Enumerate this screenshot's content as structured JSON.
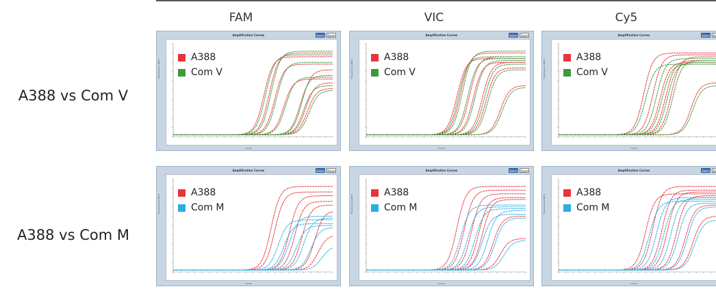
{
  "columns": [
    "FAM",
    "VIC",
    "Cy5"
  ],
  "rows": [
    "A388 vs Com V",
    "A388 vs Com M"
  ],
  "panel_title": "Amplification Curves",
  "buttons": {
    "select": "Select",
    "zoom": "Zoom"
  },
  "axis_xlabel": "Cycles",
  "axis_ylabel": "Fluorescence (RFU)",
  "colors": {
    "A388": "#e8343c",
    "Com V": "#3c9a3c",
    "Com M": "#2aaee0"
  },
  "chart_data": [
    {
      "type": "line",
      "title": "FAM",
      "row": "A388 vs Com V",
      "xlim": [
        1,
        45
      ],
      "ylim": [
        0,
        1
      ],
      "series": [
        {
          "name": "A388",
          "midpoints": [
            26,
            27.5,
            29,
            31.5,
            36.5,
            37.5,
            38
          ],
          "plateaus": [
            0.86,
            0.9,
            0.78,
            0.62,
            0.72,
            0.58,
            0.52
          ]
        },
        {
          "name": "Com V",
          "midpoints": [
            26.5,
            28,
            29.5,
            32,
            36,
            37,
            38.5
          ],
          "plateaus": [
            0.88,
            0.92,
            0.8,
            0.64,
            0.66,
            0.55,
            0.5
          ]
        }
      ]
    },
    {
      "type": "line",
      "title": "VIC",
      "row": "A388 vs Com V",
      "xlim": [
        1,
        45
      ],
      "ylim": [
        0,
        1
      ],
      "series": [
        {
          "name": "A388",
          "midpoints": [
            26,
            27,
            29.5,
            30.5,
            33,
            34,
            38
          ],
          "plateaus": [
            0.84,
            0.9,
            0.86,
            0.8,
            0.8,
            0.74,
            0.55
          ]
        },
        {
          "name": "Com V",
          "midpoints": [
            26.5,
            27.5,
            29,
            31,
            33.5,
            34.5,
            38.5
          ],
          "plateaus": [
            0.86,
            0.92,
            0.84,
            0.82,
            0.78,
            0.72,
            0.53
          ]
        }
      ]
    },
    {
      "type": "line",
      "title": "Cy5",
      "row": "A388 vs Com V",
      "xlim": [
        1,
        45
      ],
      "ylim": [
        0,
        1
      ],
      "series": [
        {
          "name": "A388",
          "midpoints": [
            24.5,
            27,
            29,
            30.5,
            32,
            37.5
          ],
          "plateaus": [
            0.9,
            0.88,
            0.8,
            0.82,
            0.86,
            0.58
          ]
        },
        {
          "name": "Com V",
          "midpoints": [
            25,
            28,
            29.5,
            31,
            32.5,
            38
          ],
          "plateaus": [
            0.78,
            0.84,
            0.78,
            0.8,
            0.82,
            0.55
          ]
        }
      ]
    },
    {
      "type": "line",
      "title": "FAM",
      "row": "A388 vs Com M",
      "xlim": [
        1,
        45
      ],
      "ylim": [
        0,
        1
      ],
      "series": [
        {
          "name": "A388",
          "midpoints": [
            28,
            29,
            33,
            34.5,
            36.5,
            40,
            41
          ],
          "plateaus": [
            0.92,
            0.86,
            0.82,
            0.76,
            0.72,
            0.66,
            0.4
          ]
        },
        {
          "name": "Com M",
          "midpoints": [
            30,
            31.5,
            33,
            35,
            37,
            39,
            42
          ],
          "plateaus": [
            0.56,
            0.52,
            0.6,
            0.5,
            0.58,
            0.48,
            0.28
          ]
        }
      ]
    },
    {
      "type": "line",
      "title": "VIC",
      "row": "A388 vs Com M",
      "xlim": [
        1,
        45
      ],
      "ylim": [
        0,
        1
      ],
      "series": [
        {
          "name": "A388",
          "midpoints": [
            26,
            28,
            30,
            32,
            33,
            36,
            38
          ],
          "plateaus": [
            0.92,
            0.88,
            0.84,
            0.8,
            0.78,
            0.6,
            0.36
          ]
        },
        {
          "name": "Com M",
          "midpoints": [
            27,
            29,
            31,
            33,
            34.5,
            36.5,
            39
          ],
          "plateaus": [
            0.72,
            0.7,
            0.68,
            0.62,
            0.66,
            0.58,
            0.34
          ]
        }
      ]
    },
    {
      "type": "line",
      "title": "Cy5",
      "row": "A388 vs Com M",
      "xlim": [
        1,
        45
      ],
      "ylim": [
        0,
        1
      ],
      "series": [
        {
          "name": "A388",
          "midpoints": [
            25,
            27,
            29.5,
            31,
            33.5,
            36,
            38
          ],
          "plateaus": [
            0.84,
            0.92,
            0.88,
            0.86,
            0.82,
            0.72,
            0.6
          ]
        },
        {
          "name": "Com M",
          "midpoints": [
            26,
            28,
            30,
            32,
            34,
            36.5,
            38.5
          ],
          "plateaus": [
            0.76,
            0.8,
            0.78,
            0.8,
            0.74,
            0.7,
            0.56
          ]
        }
      ]
    }
  ]
}
